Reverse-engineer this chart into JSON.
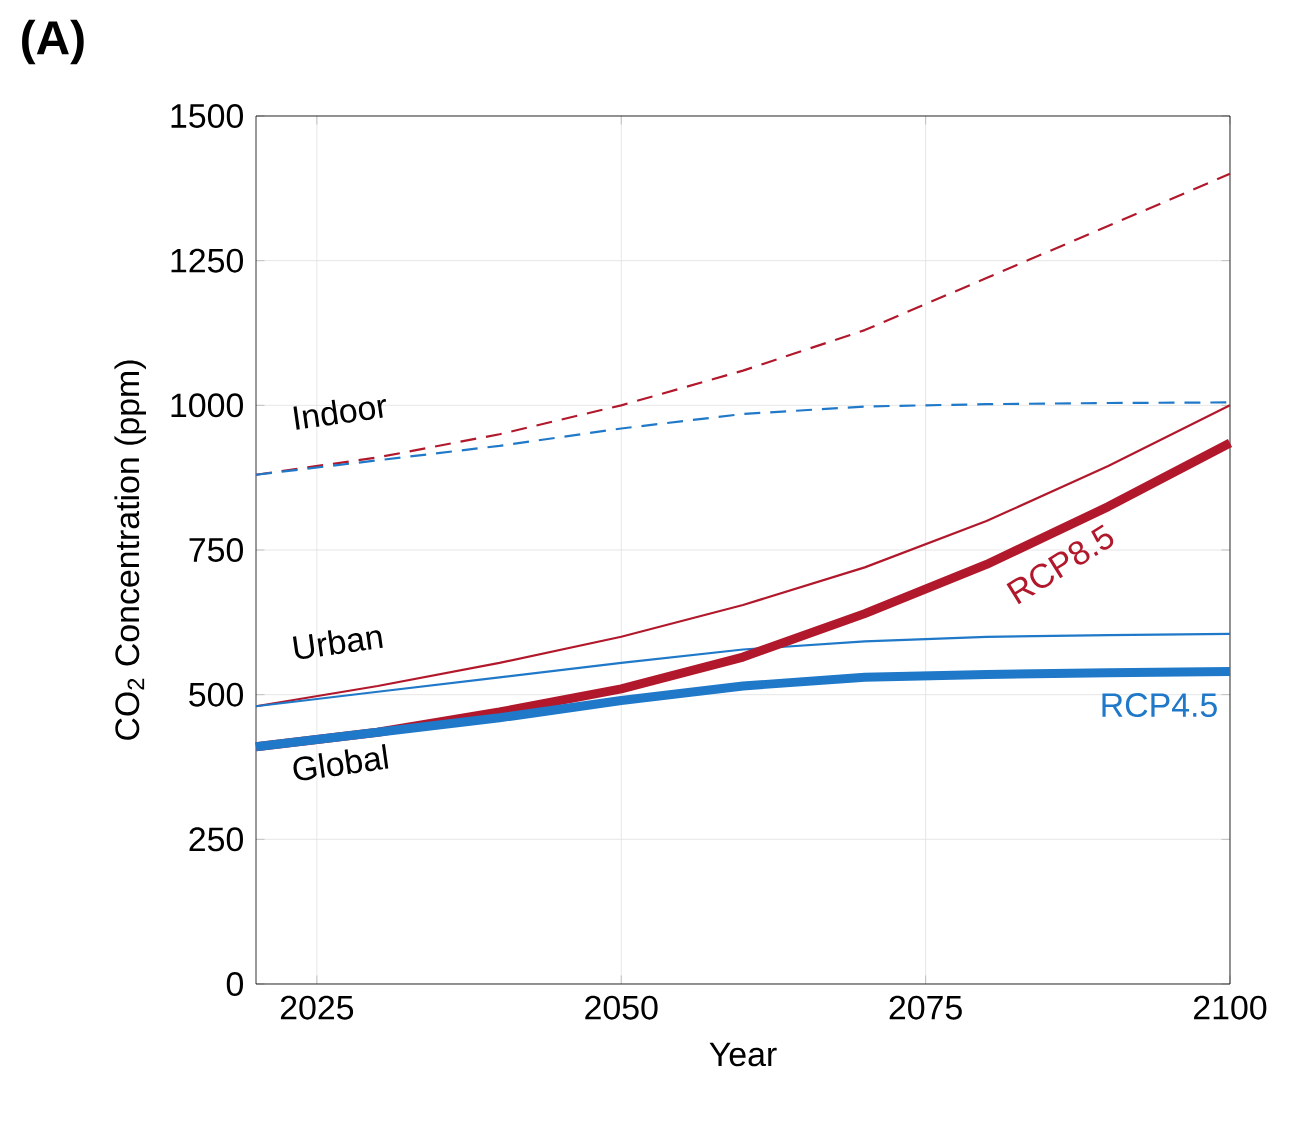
{
  "chart_data": {
    "type": "line",
    "xlabel": "Year",
    "ylabel": "CO$_{2}$ Concentration (ppm)",
    "x": [
      2020,
      2030,
      2040,
      2050,
      2060,
      2070,
      2080,
      2090,
      2100
    ],
    "xlim": [
      2020,
      2100
    ],
    "ylim": [
      0,
      1500
    ],
    "xticks": [
      2025,
      2050,
      2075,
      2100
    ],
    "yticks": [
      0,
      250,
      500,
      750,
      1000,
      1250,
      1500
    ],
    "grid": true,
    "series": [
      {
        "color": "#b2182b",
        "line_style": "dashed",
        "values": [
          880,
          910,
          950,
          1000,
          1060,
          1130,
          1220,
          1310,
          1400
        ]
      },
      {
        "color": "#1f78c8",
        "line_style": "dashed",
        "values": [
          880,
          905,
          930,
          960,
          985,
          998,
          1002,
          1004,
          1005
        ]
      },
      {
        "color": "#b2182b",
        "line_style": "solid",
        "values": [
          480,
          515,
          555,
          600,
          655,
          720,
          800,
          895,
          1000
        ]
      },
      {
        "color": "#1f78c8",
        "line_style": "solid",
        "values": [
          480,
          505,
          530,
          555,
          578,
          592,
          600,
          603,
          605
        ]
      },
      {
        "name": "RCP8.5",
        "color": "#b2182b",
        "line_style": "solid",
        "values": [
          410,
          435,
          470,
          510,
          565,
          640,
          725,
          825,
          935
        ]
      },
      {
        "name": "RCP4.5",
        "color": "#1f78c8",
        "line_style": "solid",
        "values": [
          410,
          435,
          460,
          490,
          515,
          530,
          535,
          538,
          540
        ]
      }
    ],
    "annotations": [
      "(A)",
      "Indoor",
      "Urban",
      "Global"
    ]
  }
}
